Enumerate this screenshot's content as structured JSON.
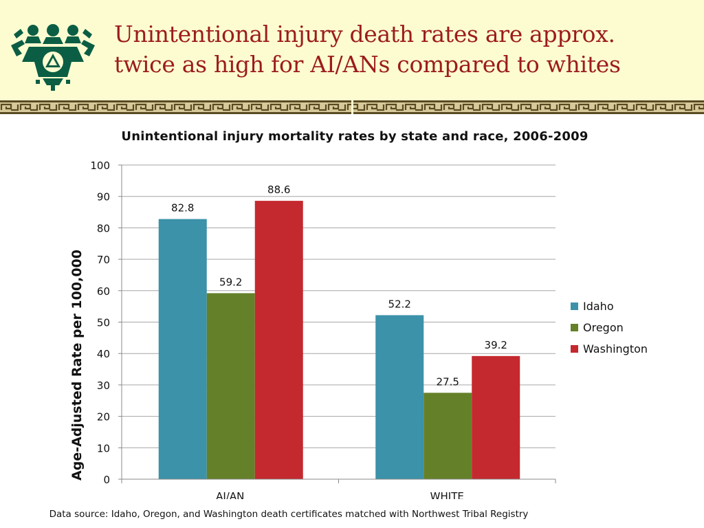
{
  "header": {
    "title_line1": "Unintentional injury death rates are approx.",
    "title_line2": "twice as high for AI/ANs compared to whites"
  },
  "colors": {
    "header_bg": "#fdfcd1",
    "title": "#9b1c1c",
    "logo": "#0b5e44",
    "border_band": "#6b5a2c"
  },
  "footer": {
    "source": "Data source: Idaho, Oregon, and Washington death certificates matched with Northwest Tribal Registry"
  },
  "chart_data": {
    "type": "bar",
    "title": "Unintentional injury mortality rates by state and race, 2006-2009",
    "xlabel": "",
    "ylabel": "Age-Adjusted Rate per 100,000",
    "categories": [
      "AI/AN",
      "WHITE"
    ],
    "series": [
      {
        "name": "Idaho",
        "values": [
          82.8,
          52.2
        ],
        "color": "#3b92a9"
      },
      {
        "name": "Oregon",
        "values": [
          59.2,
          27.5
        ],
        "color": "#648129"
      },
      {
        "name": "Washington",
        "values": [
          88.6,
          39.2
        ],
        "color": "#c4292f"
      }
    ],
    "ylim": [
      0,
      100
    ],
    "yticks": [
      "0",
      "10",
      "20",
      "30",
      "40",
      "50",
      "60",
      "70",
      "80",
      "90",
      "100"
    ],
    "grid": true,
    "legend_position": "right",
    "data_labels": true
  }
}
